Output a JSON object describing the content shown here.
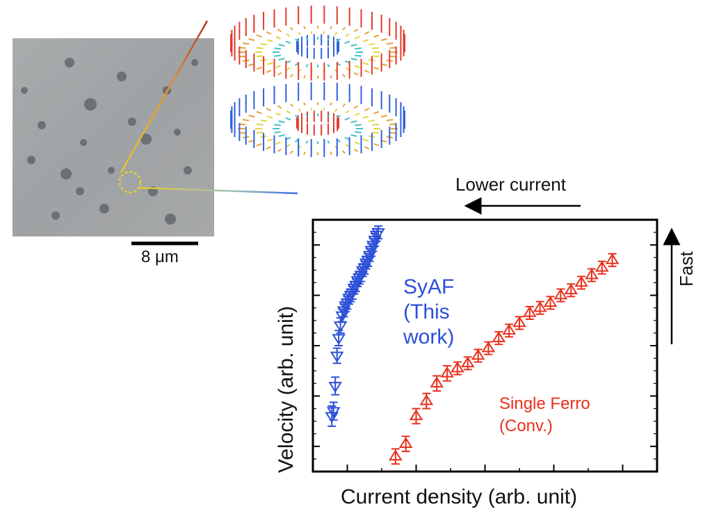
{
  "scale_bar_label": "8 μm",
  "lower_current_label": "Lower current",
  "fast_label": "Fast",
  "colors": {
    "syaf": "#2b4fd8",
    "ferro": "#e8301c",
    "axis": "#000000"
  },
  "chart_data": {
    "type": "scatter",
    "xlabel": "Current density (arb. unit)",
    "ylabel": "Velocity (arb. unit)",
    "xlim": [
      0,
      10
    ],
    "ylim": [
      0,
      10
    ],
    "grid": false,
    "x_ticks": [
      1,
      3,
      5,
      7,
      9
    ],
    "y_ticks": [
      1,
      3,
      5,
      7,
      9
    ],
    "series": [
      {
        "name": "SyAF\n(This\nwork)",
        "marker": "triangle-down",
        "color": "#2b4fd8",
        "x": [
          0.55,
          0.6,
          0.65,
          0.7,
          0.75,
          0.8,
          0.85,
          0.9,
          0.95,
          1.0,
          1.05,
          1.1,
          1.15,
          1.2,
          1.25,
          1.3,
          1.35,
          1.4,
          1.45,
          1.5,
          1.55,
          1.6,
          1.65,
          1.7,
          1.75,
          1.8,
          1.85,
          1.9
        ],
        "y": [
          2.2,
          2.4,
          3.4,
          4.6,
          5.3,
          5.8,
          6.2,
          6.4,
          6.6,
          6.7,
          6.9,
          7.0,
          7.1,
          7.3,
          7.4,
          7.6,
          7.7,
          7.8,
          8.0,
          8.1,
          8.3,
          8.4,
          8.6,
          8.8,
          9.0,
          9.2,
          9.4,
          9.5
        ],
        "err": [
          0.4,
          0.35,
          0.35,
          0.3,
          0.3,
          0.3,
          0.25,
          0.25,
          0.25,
          0.25,
          0.25,
          0.25,
          0.25,
          0.25,
          0.25,
          0.25,
          0.25,
          0.25,
          0.25,
          0.25,
          0.25,
          0.25,
          0.25,
          0.25,
          0.25,
          0.25,
          0.25,
          0.25
        ]
      },
      {
        "name": "Single Ferro\n(Conv.)",
        "marker": "triangle-up",
        "color": "#e8301c",
        "x": [
          2.4,
          2.7,
          3.0,
          3.3,
          3.6,
          3.9,
          4.2,
          4.5,
          4.8,
          5.1,
          5.4,
          5.7,
          6.0,
          6.3,
          6.6,
          6.9,
          7.2,
          7.5,
          7.8,
          8.1,
          8.4,
          8.7
        ],
        "y": [
          0.6,
          1.1,
          2.2,
          2.8,
          3.5,
          3.9,
          4.1,
          4.3,
          4.6,
          4.9,
          5.3,
          5.6,
          5.9,
          6.3,
          6.5,
          6.7,
          7.0,
          7.2,
          7.5,
          7.8,
          8.1,
          8.4
        ],
        "err": [
          0.3,
          0.3,
          0.3,
          0.3,
          0.3,
          0.3,
          0.25,
          0.25,
          0.25,
          0.25,
          0.25,
          0.25,
          0.25,
          0.25,
          0.25,
          0.25,
          0.25,
          0.25,
          0.25,
          0.25,
          0.25,
          0.25
        ]
      }
    ]
  }
}
